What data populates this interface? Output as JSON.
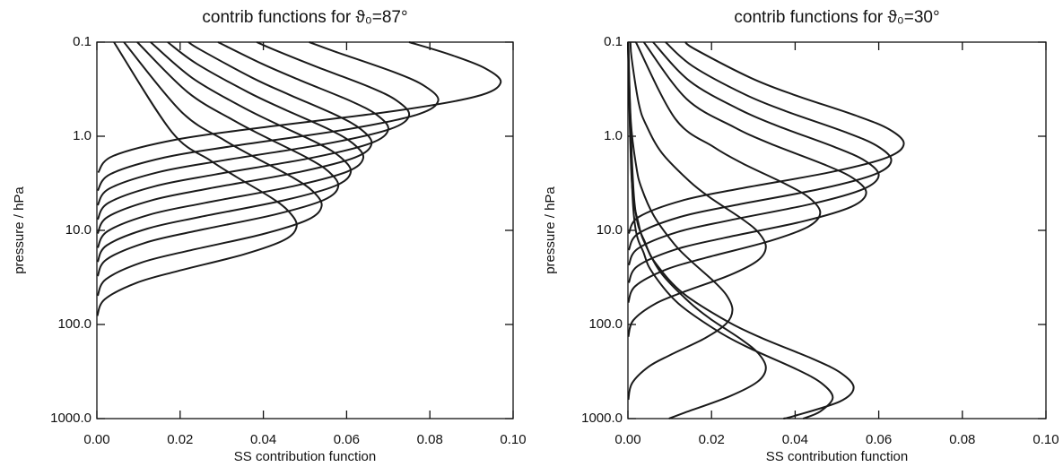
{
  "chart_data": [
    {
      "type": "line",
      "title": "contrib functions for ϑ₀=87°",
      "x_label": "SS contribution function",
      "y_label": "pressure / hPa",
      "xlim": [
        0,
        0.1
      ],
      "ylim": [
        1000,
        0.1
      ],
      "yscale": "log",
      "grid": false,
      "color": "#1a1a1a",
      "xticks": [
        {
          "value": 0,
          "label": "0.00"
        },
        {
          "value": 0.02,
          "label": "0.02"
        },
        {
          "value": 0.04,
          "label": "0.04"
        },
        {
          "value": 0.06,
          "label": "0.06"
        },
        {
          "value": 0.08,
          "label": "0.08"
        },
        {
          "value": 0.1,
          "label": "0.10"
        }
      ],
      "yticks": [
        {
          "value": 1000,
          "label": "1000.0"
        },
        {
          "value": 100,
          "label": "100.0"
        },
        {
          "value": 10,
          "label": "10.0"
        },
        {
          "value": 1,
          "label": "1.0"
        },
        0.1
      ],
      "series": [
        {
          "y": [
            0.1,
            0.135,
            0.189,
            0.27,
            0.378,
            0.54,
            0.81,
            1.08,
            1.62,
            2.43
          ],
          "x": [
            0.075,
            0.0847,
            0.0932,
            0.097,
            0.0911,
            0.0714,
            0.0394,
            0.0193,
            0.0039,
            0.0003
          ]
        },
        {
          "y": [
            0.1,
            0.126,
            0.21,
            0.294,
            0.42,
            0.588,
            0.84,
            1.26,
            1.68,
            2.52,
            3.78
          ],
          "x": [
            0.051,
            0.0572,
            0.0716,
            0.0788,
            0.082,
            0.077,
            0.0604,
            0.0333,
            0.0163,
            0.0033,
            0.0002
          ]
        },
        {
          "y": [
            0.1,
            0.12,
            0.18,
            0.3,
            0.42,
            0.6,
            0.84,
            1.2,
            1.8,
            2.4,
            3.6,
            5.4
          ],
          "x": [
            0.0384,
            0.0425,
            0.0524,
            0.0655,
            0.0721,
            0.075,
            0.0704,
            0.0552,
            0.0305,
            0.0149,
            0.003,
            0.0002
          ]
        },
        {
          "y": [
            0.1,
            0.17,
            0.255,
            0.425,
            0.595,
            0.85,
            1.19,
            1.7,
            2.55,
            3.4,
            5.1,
            7.65
          ],
          "x": [
            0.0291,
            0.0397,
            0.0489,
            0.0611,
            0.0673,
            0.07,
            0.0657,
            0.0515,
            0.0284,
            0.0139,
            0.0028,
            0.0002
          ]
        },
        {
          "y": [
            0.1,
            0.12,
            0.24,
            0.36,
            0.6,
            0.84,
            1.2,
            1.68,
            2.4,
            3.6,
            4.8,
            7.2,
            10.8
          ],
          "x": [
            0.022,
            0.0248,
            0.0374,
            0.0461,
            0.0576,
            0.0634,
            0.066,
            0.062,
            0.0486,
            0.0268,
            0.0131,
            0.0026,
            0.0002
          ]
        },
        {
          "y": [
            0.1,
            0.17,
            0.34,
            0.51,
            0.85,
            1.19,
            1.7,
            2.38,
            3.4,
            5.1,
            6.8,
            10.2,
            15.3
          ],
          "x": [
            0.017,
            0.024,
            0.0363,
            0.0447,
            0.0559,
            0.0615,
            0.064,
            0.0601,
            0.0471,
            0.026,
            0.0127,
            0.0026,
            0.0002
          ]
        },
        {
          "y": [
            0.1,
            0.24,
            0.48,
            0.72,
            1.2,
            1.68,
            2.4,
            3.36,
            4.8,
            7.2,
            9.6,
            14.4,
            21.6
          ],
          "x": [
            0.0129,
            0.0229,
            0.0346,
            0.0426,
            0.0533,
            0.0586,
            0.061,
            0.0573,
            0.0449,
            0.0248,
            0.0121,
            0.0024,
            0.0002
          ]
        },
        {
          "y": [
            0.1,
            0.34,
            0.68,
            1.02,
            1.7,
            2.38,
            3.4,
            4.76,
            6.8,
            10.2,
            13.6,
            20.4,
            30.6
          ],
          "x": [
            0.0097,
            0.0218,
            0.0329,
            0.0405,
            0.0506,
            0.0557,
            0.058,
            0.0545,
            0.0427,
            0.0235,
            0.0115,
            0.0023,
            0.0002
          ]
        },
        {
          "y": [
            0.1,
            0.55,
            1.1,
            1.65,
            2.75,
            3.85,
            5.5,
            7.7,
            11,
            16.5,
            22,
            33,
            49.5
          ],
          "x": [
            0.0065,
            0.0203,
            0.0306,
            0.0377,
            0.0471,
            0.0519,
            0.054,
            0.0507,
            0.0397,
            0.0219,
            0.0107,
            0.0022,
            0.0002
          ]
        },
        {
          "y": [
            0.1,
            0.9,
            1.8,
            2.7,
            4.5,
            6.3,
            9,
            12.6,
            18,
            27,
            36,
            54,
            81
          ],
          "x": [
            0.0041,
            0.018,
            0.0272,
            0.0335,
            0.0419,
            0.0461,
            0.048,
            0.0451,
            0.0353,
            0.0195,
            0.0096,
            0.0019,
            0.0001
          ]
        }
      ]
    },
    {
      "type": "line",
      "title": "contrib functions for ϑ₀=30°",
      "x_label": "SS contribution function",
      "y_label": "pressure / hPa",
      "xlim": [
        0,
        0.1
      ],
      "ylim": [
        1000,
        0.1
      ],
      "yscale": "log",
      "grid": false,
      "color": "#1a1a1a",
      "xticks": [
        {
          "value": 0,
          "label": "0.00"
        },
        {
          "value": 0.02,
          "label": "0.02"
        },
        {
          "value": 0.04,
          "label": "0.04"
        },
        {
          "value": 0.06,
          "label": "0.06"
        },
        {
          "value": 0.08,
          "label": "0.08"
        },
        {
          "value": 0.1,
          "label": "0.10"
        }
      ],
      "yticks": [
        {
          "value": 1000,
          "label": "1000.0"
        },
        {
          "value": 100,
          "label": "100.0"
        },
        {
          "value": 10,
          "label": "10.0"
        },
        {
          "value": 1,
          "label": "1.0"
        },
        0.1
      ],
      "series": [
        {
          "y": [
            0.1,
            0.12,
            0.24,
            0.36,
            0.6,
            0.84,
            1.2,
            1.68,
            2.4,
            3.6,
            4.8,
            7.2,
            10.8
          ],
          "x": [
            0.0137,
            0.0162,
            0.0294,
            0.0395,
            0.0544,
            0.0624,
            0.066,
            0.062,
            0.0486,
            0.0268,
            0.0131,
            0.0026,
            0.0002
          ]
        },
        {
          "y": [
            0.1,
            0.18,
            0.36,
            0.54,
            0.9,
            1.26,
            1.8,
            2.52,
            3.6,
            5.4,
            7.2,
            10.8,
            16.2
          ],
          "x": [
            0.009,
            0.0155,
            0.028,
            0.0377,
            0.0519,
            0.0595,
            0.063,
            0.0592,
            0.0464,
            0.0256,
            0.0125,
            0.0025,
            0.0002
          ]
        },
        {
          "y": [
            0.1,
            0.26,
            0.52,
            0.78,
            1.3,
            1.82,
            2.6,
            3.64,
            5.2,
            7.8,
            10.4,
            15.6,
            23.4
          ],
          "x": [
            0.006,
            0.0148,
            0.0267,
            0.0359,
            0.0494,
            0.0567,
            0.06,
            0.0563,
            0.0442,
            0.0244,
            0.0119,
            0.0024,
            0.0002
          ]
        },
        {
          "y": [
            0.1,
            0.4,
            0.8,
            1.2,
            2,
            2.8,
            4,
            5.6,
            8,
            12,
            16,
            24,
            36
          ],
          "x": [
            0.0038,
            0.014,
            0.0254,
            0.0341,
            0.047,
            0.0539,
            0.057,
            0.0535,
            0.042,
            0.0231,
            0.0113,
            0.0023,
            0.0002
          ]
        },
        {
          "y": [
            0.1,
            0.65,
            1.3,
            1.95,
            3.25,
            4.55,
            6.5,
            9.1,
            13,
            19.5,
            26,
            39,
            58.5
          ],
          "x": [
            0.0019,
            0.0113,
            0.0205,
            0.0275,
            0.0379,
            0.0435,
            0.046,
            0.0432,
            0.0339,
            0.0187,
            0.0092,
            0.0018,
            0.0001
          ]
        },
        {
          "y": [
            0.1,
            0.15,
            0.45,
            0.75,
            1.5,
            3,
            4.5,
            7.5,
            10.5,
            15,
            21,
            30,
            45,
            60,
            90,
            135
          ],
          "x": [
            0.0006,
            0.0009,
            0.0026,
            0.0043,
            0.0081,
            0.0147,
            0.0197,
            0.0272,
            0.0312,
            0.033,
            0.031,
            0.0243,
            0.0134,
            0.0066,
            0.0013,
            0.0001
          ]
        },
        {
          "y": [
            0.1,
            0.7,
            2.1,
            3.5,
            7,
            14,
            21,
            35,
            49,
            70,
            98,
            140,
            210,
            280,
            420,
            630
          ],
          "x": [
            0.0001,
            0.0007,
            0.002,
            0.0032,
            0.0062,
            0.0111,
            0.015,
            0.0206,
            0.0236,
            0.025,
            0.0235,
            0.0184,
            0.0102,
            0.005,
            0.001,
            0.0001
          ]
        },
        {
          "y": [
            0.1,
            2.9,
            8.7,
            14.5,
            29,
            58,
            87,
            145,
            203,
            290,
            406,
            580,
            870,
            1000
          ],
          "x": [
            0,
            0.0009,
            0.0026,
            0.0043,
            0.0081,
            0.0147,
            0.0197,
            0.0272,
            0.0312,
            0.033,
            0.031,
            0.0243,
            0.0134,
            0.0098
          ]
        },
        {
          "y": [
            0.1,
            4.7,
            14.1,
            23.5,
            47,
            94,
            141,
            235,
            329,
            470,
            658,
            940,
            1000
          ],
          "x": [
            0,
            0.0015,
            0.0043,
            0.007,
            0.0133,
            0.024,
            0.0323,
            0.0445,
            0.051,
            0.054,
            0.0507,
            0.0397,
            0.0372
          ]
        },
        {
          "y": [
            0.1,
            6,
            18,
            30,
            60,
            120,
            180,
            300,
            420,
            600,
            840,
            1000
          ],
          "x": [
            0,
            0.0013,
            0.0039,
            0.0063,
            0.0121,
            0.0218,
            0.0293,
            0.0404,
            0.0463,
            0.049,
            0.046,
            0.0419
          ]
        }
      ]
    }
  ]
}
